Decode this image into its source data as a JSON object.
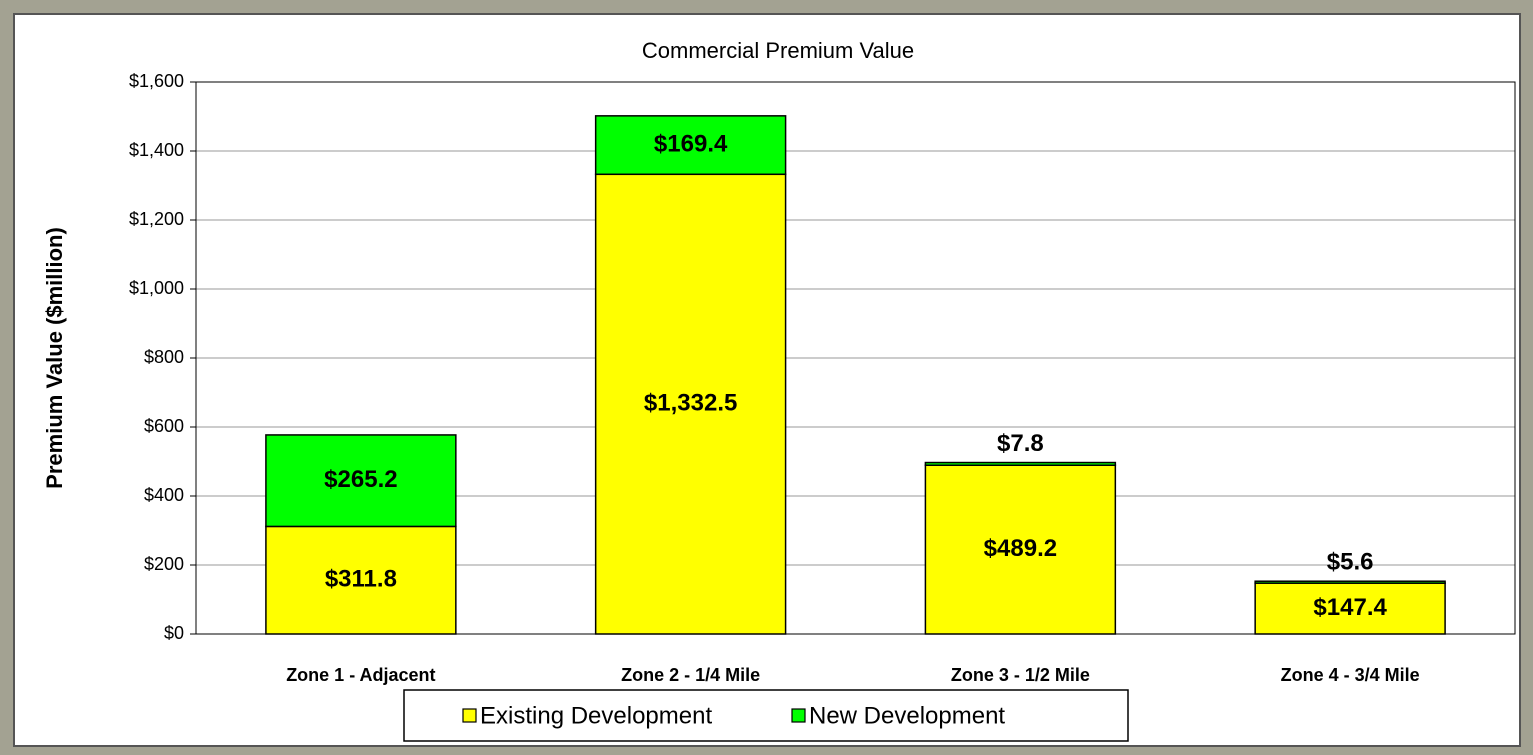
{
  "chart_data": {
    "type": "stacked_bar",
    "title": "Commercial Premium Value",
    "y_label": "Premium Value ($million)",
    "categories": [
      "Zone 1 - Adjacent",
      "Zone 2 - 1/4 Mile",
      "Zone 3 - 1/2 Mile",
      "Zone 4 - 3/4 Mile"
    ],
    "series": [
      {
        "name": "Existing Development",
        "color": "#ffff00",
        "values": [
          311.8,
          1332.5,
          489.2,
          147.4
        ],
        "value_labels": [
          "$311.8",
          "$1,332.5",
          "$489.2",
          "$147.4"
        ]
      },
      {
        "name": "New Development",
        "color": "#00ff00",
        "values": [
          265.2,
          169.4,
          7.8,
          5.6
        ],
        "value_labels": [
          "$265.2",
          "$169.4",
          "$7.8",
          "$5.6"
        ]
      }
    ],
    "ylim": [
      0,
      1600
    ],
    "yticks": [
      {
        "value": 0,
        "label": "$0"
      },
      {
        "value": 200,
        "label": "$200"
      },
      {
        "value": 400,
        "label": "$400"
      },
      {
        "value": 600,
        "label": "$600"
      },
      {
        "value": 800,
        "label": "$800"
      },
      {
        "value": 1000,
        "label": "$1,000"
      },
      {
        "value": 1200,
        "label": "$1,200"
      },
      {
        "value": 1400,
        "label": "$1,400"
      },
      {
        "value": 1600,
        "label": "$1,600"
      }
    ],
    "grid": true,
    "legend": "bottom"
  }
}
